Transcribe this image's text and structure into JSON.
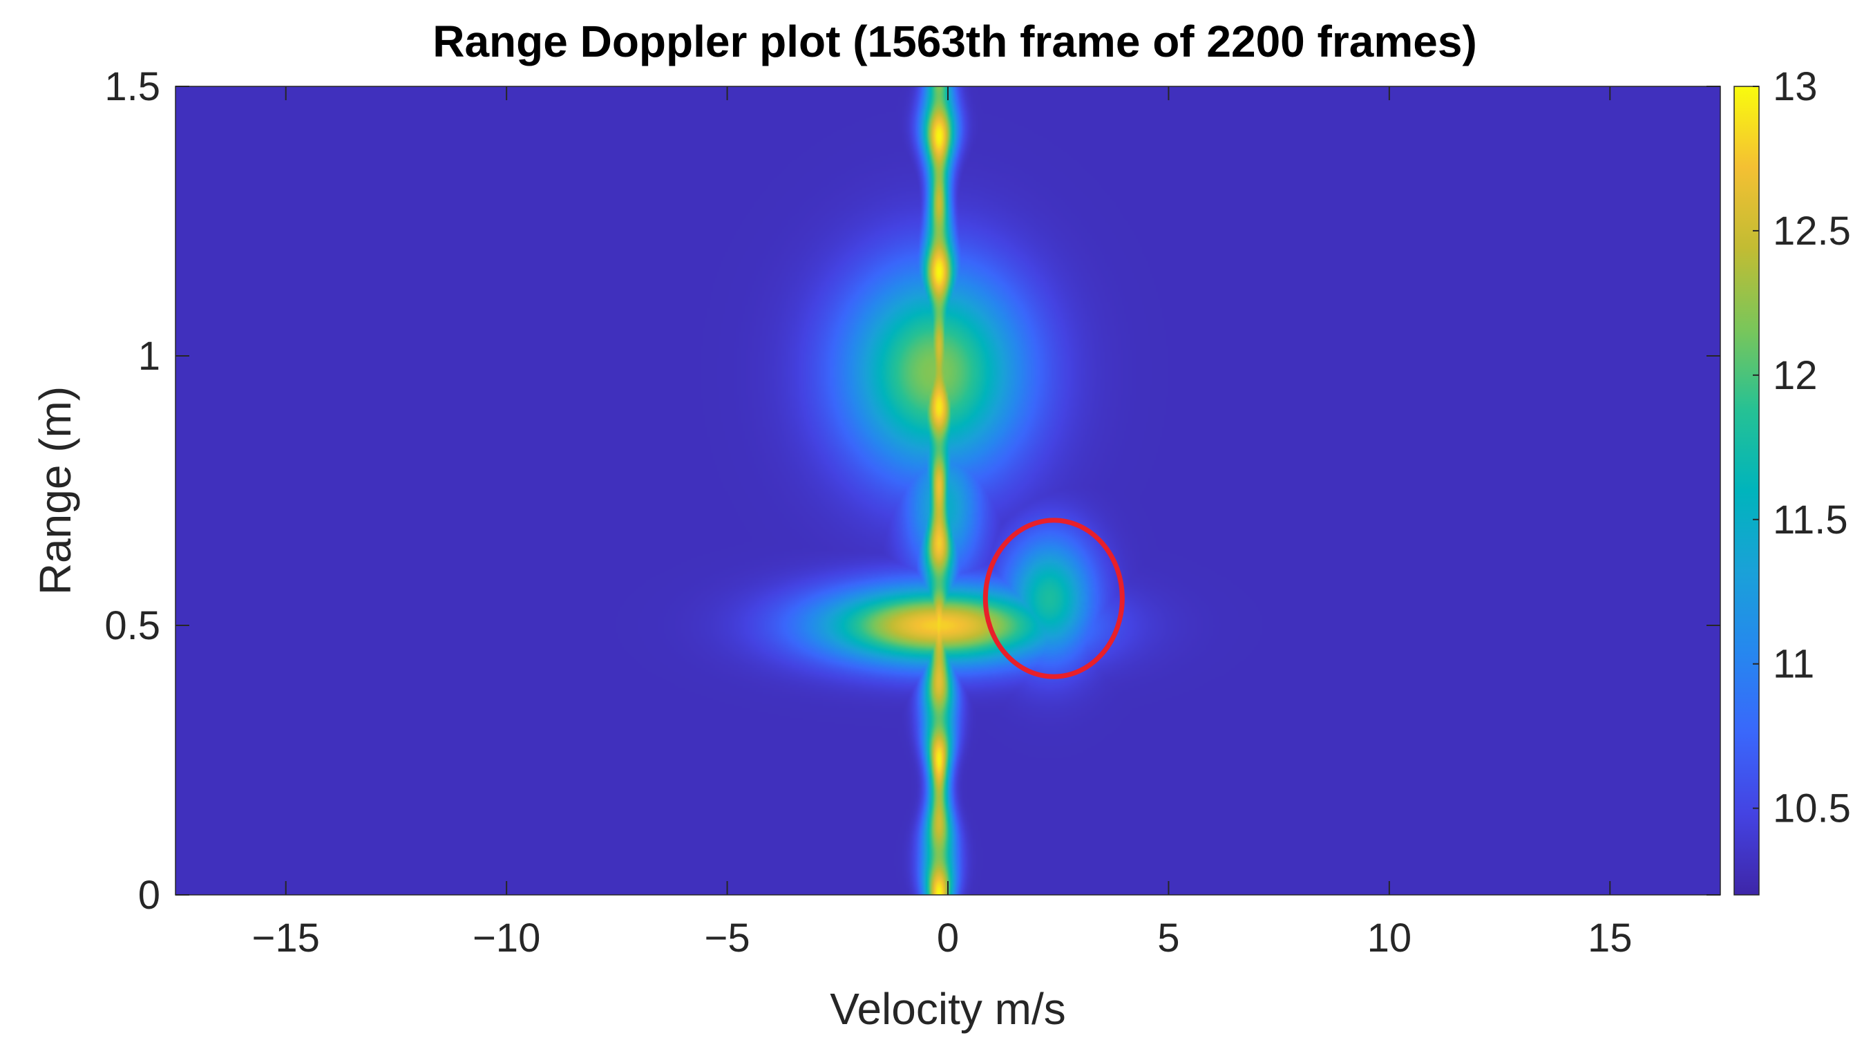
{
  "chart_data": {
    "type": "heatmap",
    "title": "Range Doppler plot (1563th frame of 2200 frames)",
    "xlabel": "Velocity m/s",
    "ylabel": "Range (m)",
    "xlim": [
      -17.5,
      17.5
    ],
    "ylim": [
      0,
      1.5
    ],
    "x_ticks": [
      -15,
      -10,
      -5,
      0,
      5,
      10,
      15
    ],
    "x_tick_labels": [
      "−15",
      "−10",
      "−5",
      "0",
      "5",
      "10",
      "15"
    ],
    "y_ticks": [
      0,
      0.5,
      1,
      1.5
    ],
    "y_tick_labels": [
      "0",
      "0.5",
      "1",
      "1.5"
    ],
    "colorbar": {
      "colormap": "parula",
      "range": [
        10.2,
        13
      ],
      "ticks": [
        10.5,
        11,
        11.5,
        12,
        12.5,
        13
      ],
      "tick_labels": [
        "10.5",
        "11",
        "11.5",
        "12",
        "12.5",
        "13"
      ]
    },
    "background_value": 10.3,
    "features": [
      {
        "kind": "stationary-clutter-ridge",
        "velocity": -0.2,
        "range_from": 0.0,
        "range_to": 1.5,
        "peak_value": 13
      },
      {
        "kind": "blob",
        "velocity": -0.2,
        "range": 0.5,
        "spread_velocity": 1.9,
        "spread_range": 0.05,
        "peak_value": 12.8
      },
      {
        "kind": "blob",
        "velocity": -0.3,
        "range": 0.97,
        "spread_velocity": 1.4,
        "spread_range": 0.13,
        "peak_value": 12.2
      },
      {
        "kind": "blob",
        "velocity": -0.1,
        "range": 0.72,
        "spread_velocity": 0.6,
        "spread_range": 0.09,
        "peak_value": 11.5
      },
      {
        "kind": "blob",
        "velocity": 1.3,
        "range": 0.92,
        "spread_velocity": 0.8,
        "spread_range": 0.06,
        "peak_value": 10.9
      },
      {
        "kind": "moving-target",
        "velocity": 2.3,
        "range": 0.55,
        "spread_velocity": 0.7,
        "spread_range": 0.08,
        "peak_value": 11.8
      }
    ],
    "annotations": [
      {
        "type": "ellipse",
        "color": "#e8202a",
        "center_velocity": 2.4,
        "center_range": 0.55,
        "radius_velocity": 1.55,
        "radius_range": 0.145
      }
    ],
    "colors": {
      "background": "#3e26a8",
      "peak": "#f9fb0e",
      "annotation": "#e8202a"
    }
  }
}
